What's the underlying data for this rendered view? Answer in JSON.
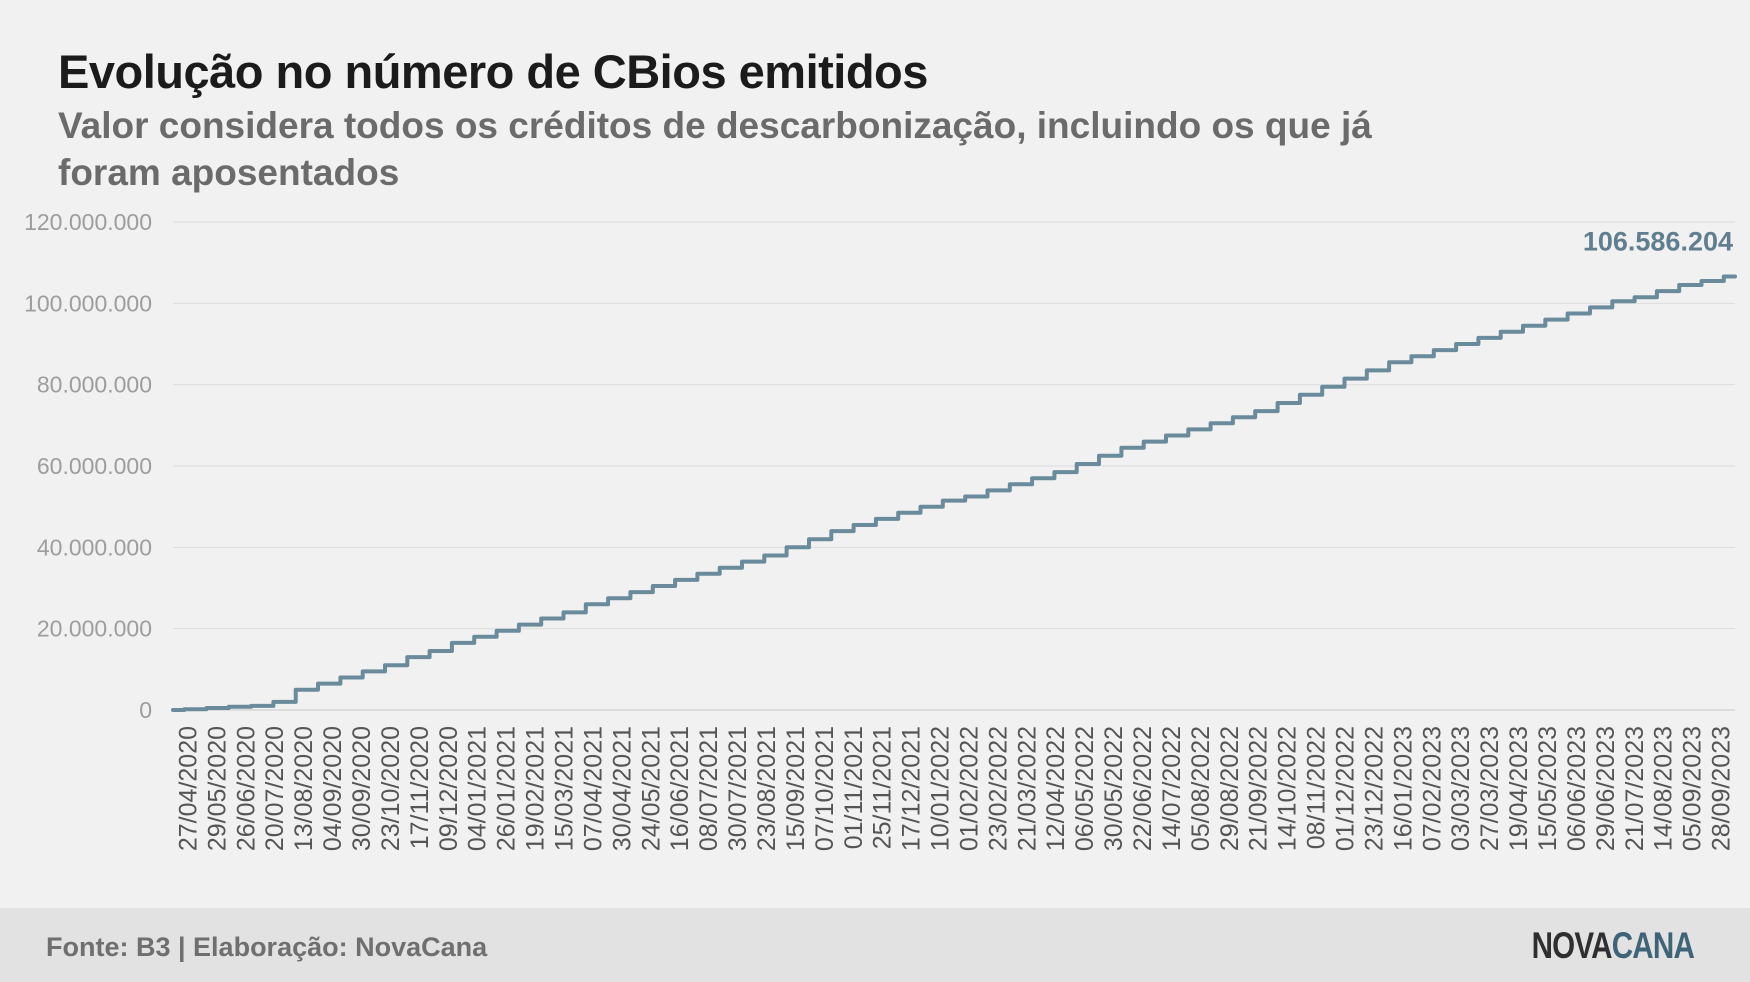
{
  "title": "Evolução no número de CBios emitidos",
  "subtitle": "Valor considera todos os créditos de descarbonização, incluindo os que já foram aposentados",
  "footer": {
    "source": "Fonte: B3 | Elaboração: NovaCana"
  },
  "logo": {
    "part1": "NOVA",
    "part2": "CANA"
  },
  "colors": {
    "line": "#6a8b9c",
    "end_label": "#5f7f90",
    "grid": "#dcdcdc",
    "tick": "#9d9d9d",
    "xtick": "#555555"
  },
  "chart_data": {
    "type": "line",
    "title": "Evolução no número de CBios emitidos",
    "subtitle": "Valor considera todos os créditos de descarbonização, incluindo os que já foram aposentados",
    "xlabel": "",
    "ylabel": "",
    "ylim": [
      0,
      120000000
    ],
    "yticks": [
      0,
      20000000,
      40000000,
      60000000,
      80000000,
      100000000,
      120000000
    ],
    "ytick_labels": [
      "0",
      "20.000.000",
      "40.000.000",
      "60.000.000",
      "80.000.000",
      "100.000.000",
      "120.000.000"
    ],
    "grid": "horizontal",
    "x_tick_labels": [
      "27/04/2020",
      "29/05/2020",
      "26/06/2020",
      "20/07/2020",
      "13/08/2020",
      "04/09/2020",
      "30/09/2020",
      "23/10/2020",
      "17/11/2020",
      "09/12/2020",
      "04/01/2021",
      "26/01/2021",
      "19/02/2021",
      "15/03/2021",
      "07/04/2021",
      "30/04/2021",
      "24/05/2021",
      "16/06/2021",
      "08/07/2021",
      "30/07/2021",
      "23/08/2021",
      "15/09/2021",
      "07/10/2021",
      "01/11/2021",
      "25/11/2021",
      "17/12/2021",
      "10/01/2022",
      "01/02/2022",
      "23/02/2022",
      "21/03/2022",
      "12/04/2022",
      "06/05/2022",
      "30/05/2022",
      "22/06/2022",
      "14/07/2022",
      "05/08/2022",
      "29/08/2022",
      "21/09/2022",
      "14/10/2022",
      "08/11/2022",
      "01/12/2022",
      "23/12/2022",
      "16/01/2023",
      "07/02/2023",
      "03/03/2023",
      "27/03/2023",
      "19/04/2023",
      "15/05/2023",
      "06/06/2023",
      "29/06/2023",
      "21/07/2023",
      "14/08/2023",
      "05/09/2023",
      "28/09/2023"
    ],
    "series": [
      {
        "values": [
          0,
          200000,
          500000,
          800000,
          1000000,
          2000000,
          5000000,
          6500000,
          8000000,
          9500000,
          11000000,
          13000000,
          14500000,
          16500000,
          18000000,
          19500000,
          21000000,
          22500000,
          24000000,
          26000000,
          27500000,
          29000000,
          30500000,
          32000000,
          33500000,
          35000000,
          36500000,
          38000000,
          40000000,
          42000000,
          44000000,
          45500000,
          47000000,
          48500000,
          50000000,
          51500000,
          52500000,
          54000000,
          55500000,
          57000000,
          58500000,
          60500000,
          62500000,
          64500000,
          66000000,
          67500000,
          69000000,
          70500000,
          72000000,
          73500000,
          75500000,
          77500000,
          79500000,
          81500000,
          83500000,
          85500000,
          87000000,
          88500000,
          90000000,
          91500000,
          93000000,
          94500000,
          96000000,
          97500000,
          99000000,
          100500000,
          101500000,
          103000000,
          104500000,
          105500000,
          106586204
        ]
      }
    ],
    "end_label": "106.586.204"
  }
}
